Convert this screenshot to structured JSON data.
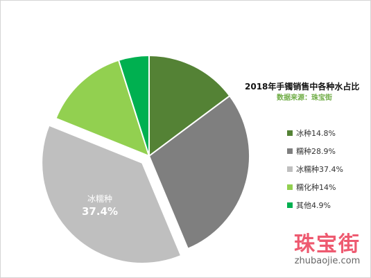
{
  "chart_data": {
    "type": "pie",
    "title": "2018年手镯销售中各种水占比",
    "subtitle": "数据来源：珠宝街",
    "categories": [
      "冰种",
      "糯种",
      "冰糯种",
      "糯化种",
      "其他"
    ],
    "values": [
      14.8,
      28.9,
      37.4,
      14,
      4.9
    ],
    "legend_labels": [
      "冰种14.8%",
      "糯种28.9%",
      "冰糯种37.4%",
      "糯化种14%",
      "其他4.9%"
    ],
    "colors": [
      "#548235",
      "#7f7f7f",
      "#bfbfbf",
      "#92d050",
      "#00b050"
    ],
    "exploded_index": 2,
    "data_label": {
      "name": "冰糯种",
      "value": "37.4%"
    },
    "legend_position": "right"
  },
  "style": {
    "subtitle_color": "#70ad47"
  },
  "watermark": {
    "brand": "珠宝街",
    "url": "zhubaojie.com"
  }
}
